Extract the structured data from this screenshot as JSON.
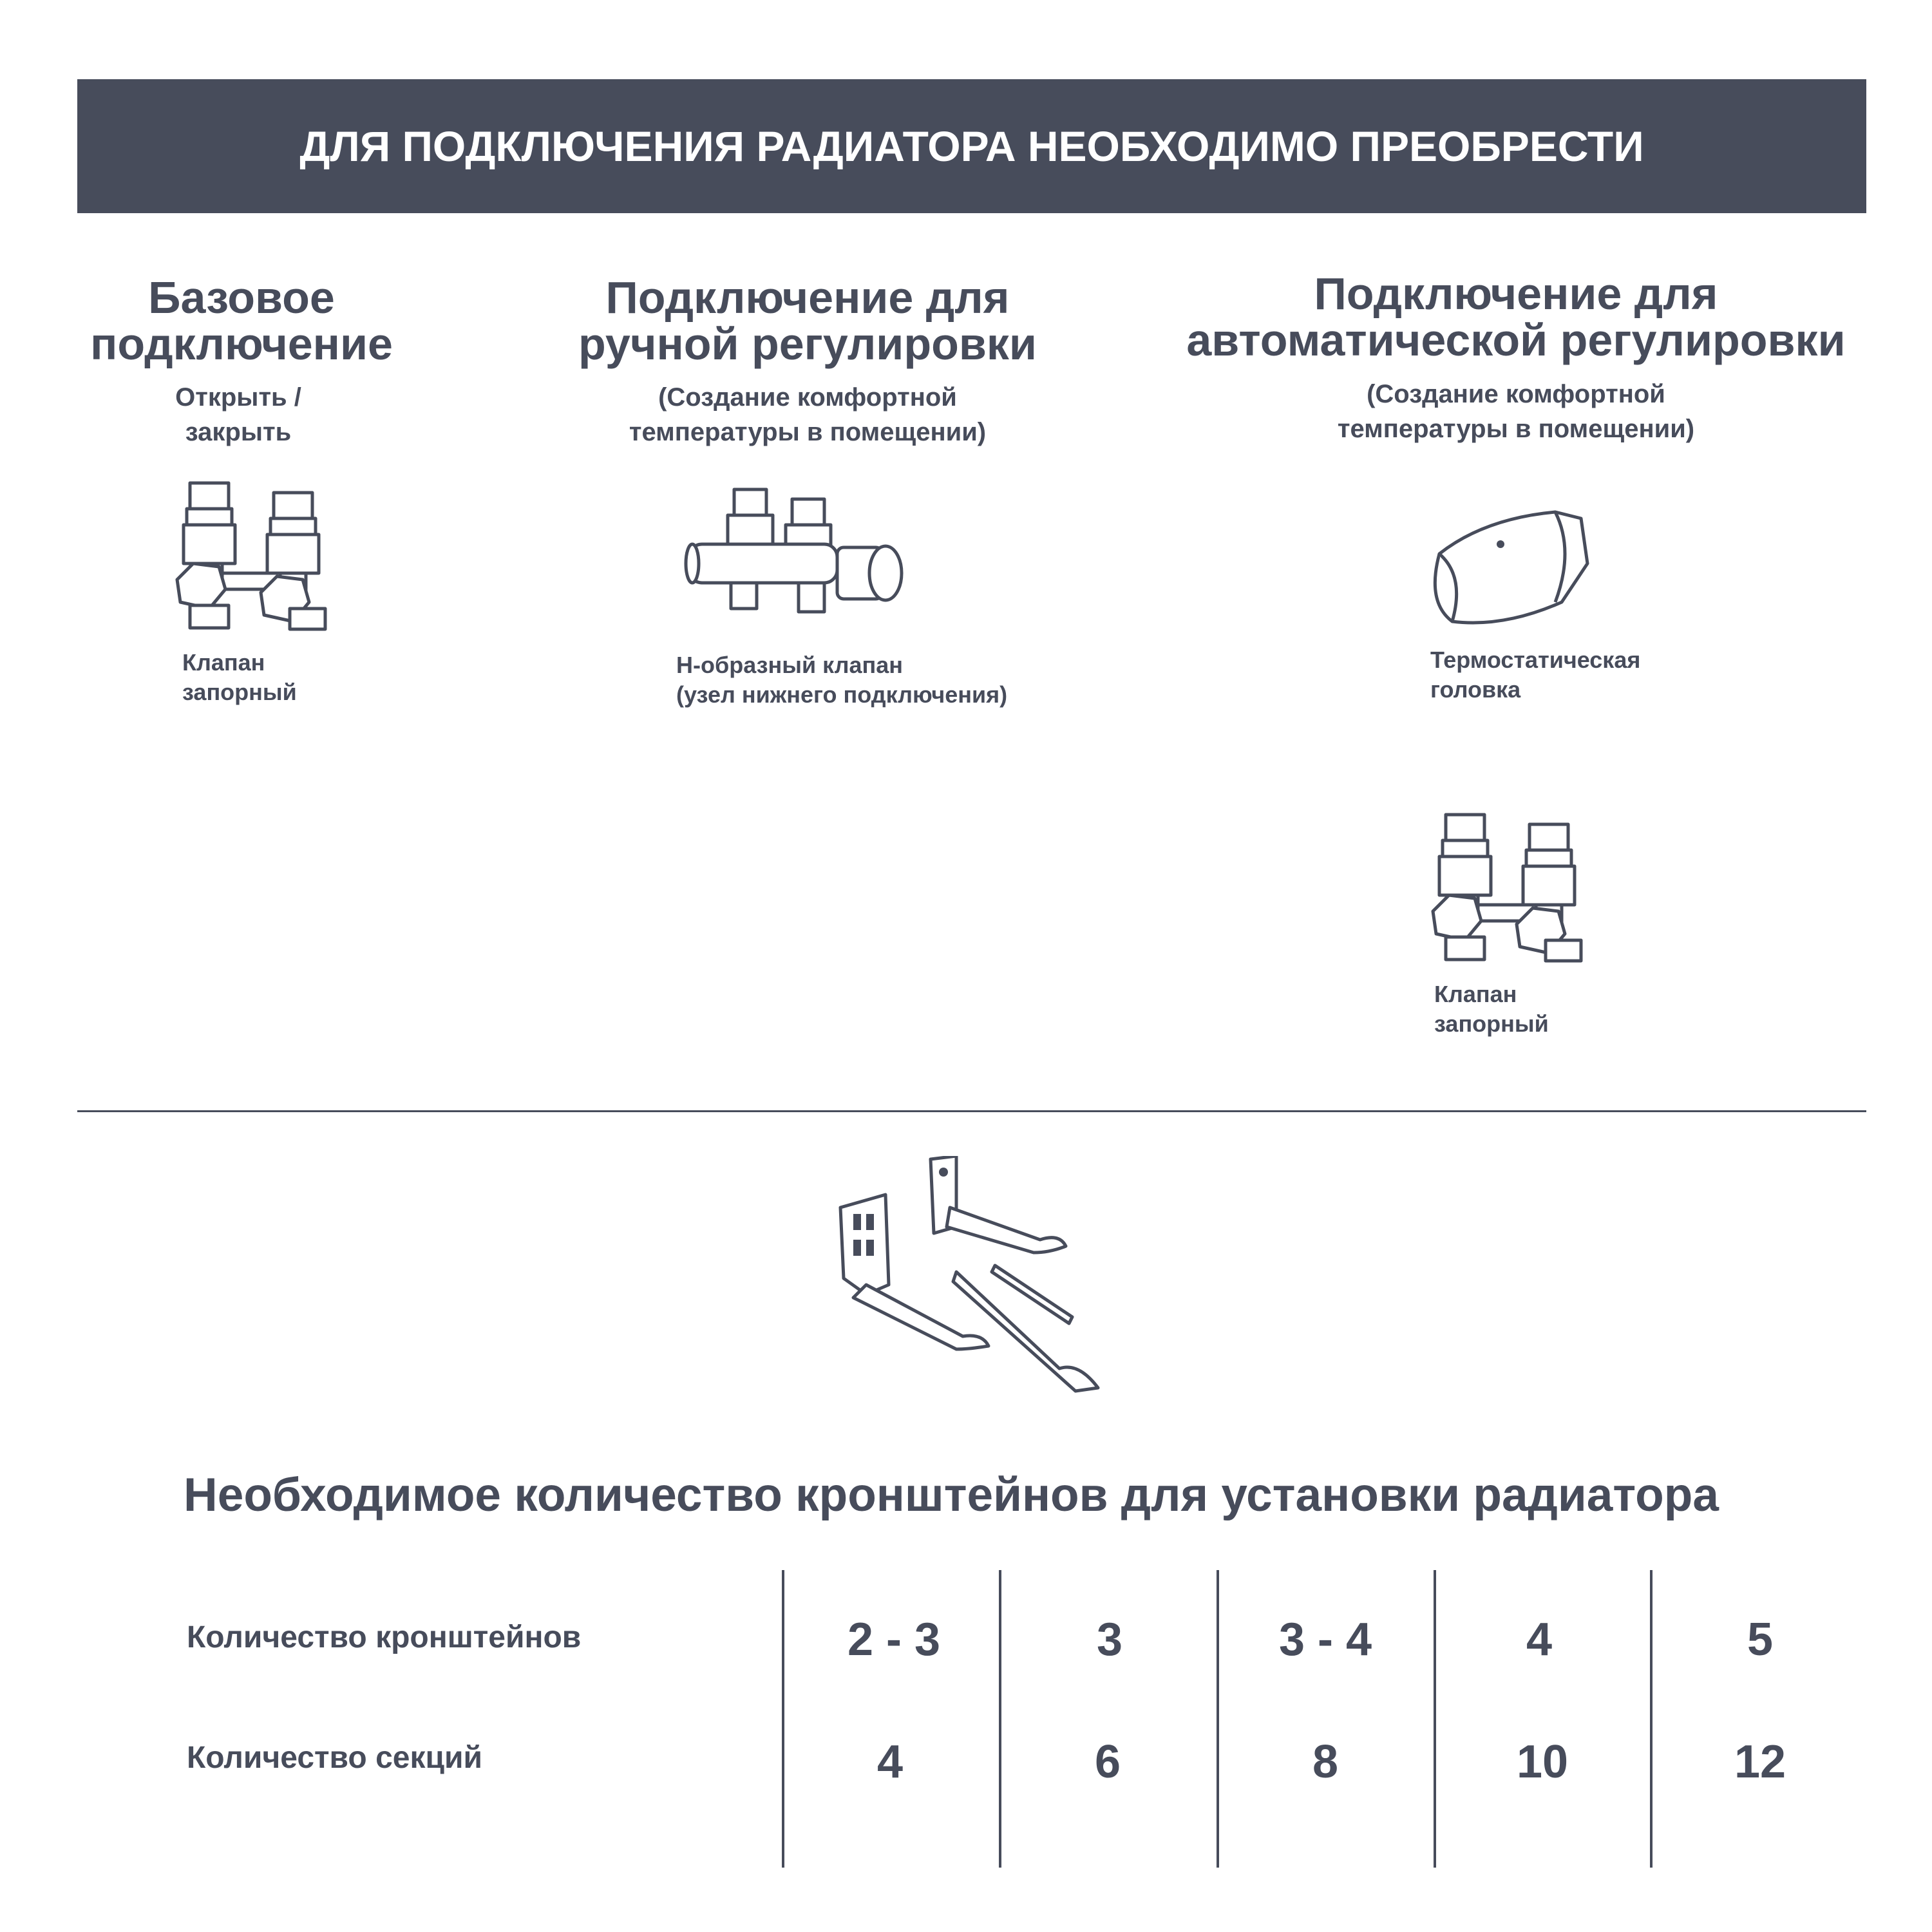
{
  "banner": {
    "title": "ДЛЯ ПОДКЛЮЧЕНИЯ РАДИАТОРА НЕОБХОДИМО ПРЕОБРЕСТИ"
  },
  "columns": [
    {
      "title_line1": "Базовое",
      "title_line2": "подключение",
      "sub_line1": "Открыть /",
      "sub_line2": "закрыть",
      "items": [
        {
          "icon": "shutoff-valve-icon",
          "label_line1": "Клапан",
          "label_line2": "запорный"
        }
      ]
    },
    {
      "title_line1": "Подключение для",
      "title_line2": "ручной регулировки",
      "sub_line1": "(Создание комфортной",
      "sub_line2": "температуры в помещении)",
      "items": [
        {
          "icon": "h-valve-icon",
          "label_line1": "Н-образный клапан",
          "label_line2": "(узел нижнего подключения)"
        }
      ]
    },
    {
      "title_line1": "Подключение для",
      "title_line2": "автоматической регулировки",
      "sub_line1": "(Создание комфортной",
      "sub_line2": "температуры в помещении)",
      "items": [
        {
          "icon": "thermostatic-head-icon",
          "label_line1": "Термостатическая",
          "label_line2": "головка"
        },
        {
          "icon": "shutoff-valve-icon",
          "label_line1": "Клапан",
          "label_line2": "запорный"
        }
      ]
    }
  ],
  "brackets": {
    "icon": "wall-bracket-icon"
  },
  "table": {
    "title": "Необходимое количество кронштейнов для установки радиатора",
    "rows": [
      {
        "label": "Количество кронштейнов",
        "values": [
          "2 - 3",
          "3",
          "3 - 4",
          "4",
          "5"
        ]
      },
      {
        "label": "Количество секций",
        "values": [
          "4",
          "6",
          "8",
          "10",
          "12"
        ]
      }
    ]
  },
  "colors": {
    "primary": "#474c5b",
    "background": "#ffffff"
  }
}
